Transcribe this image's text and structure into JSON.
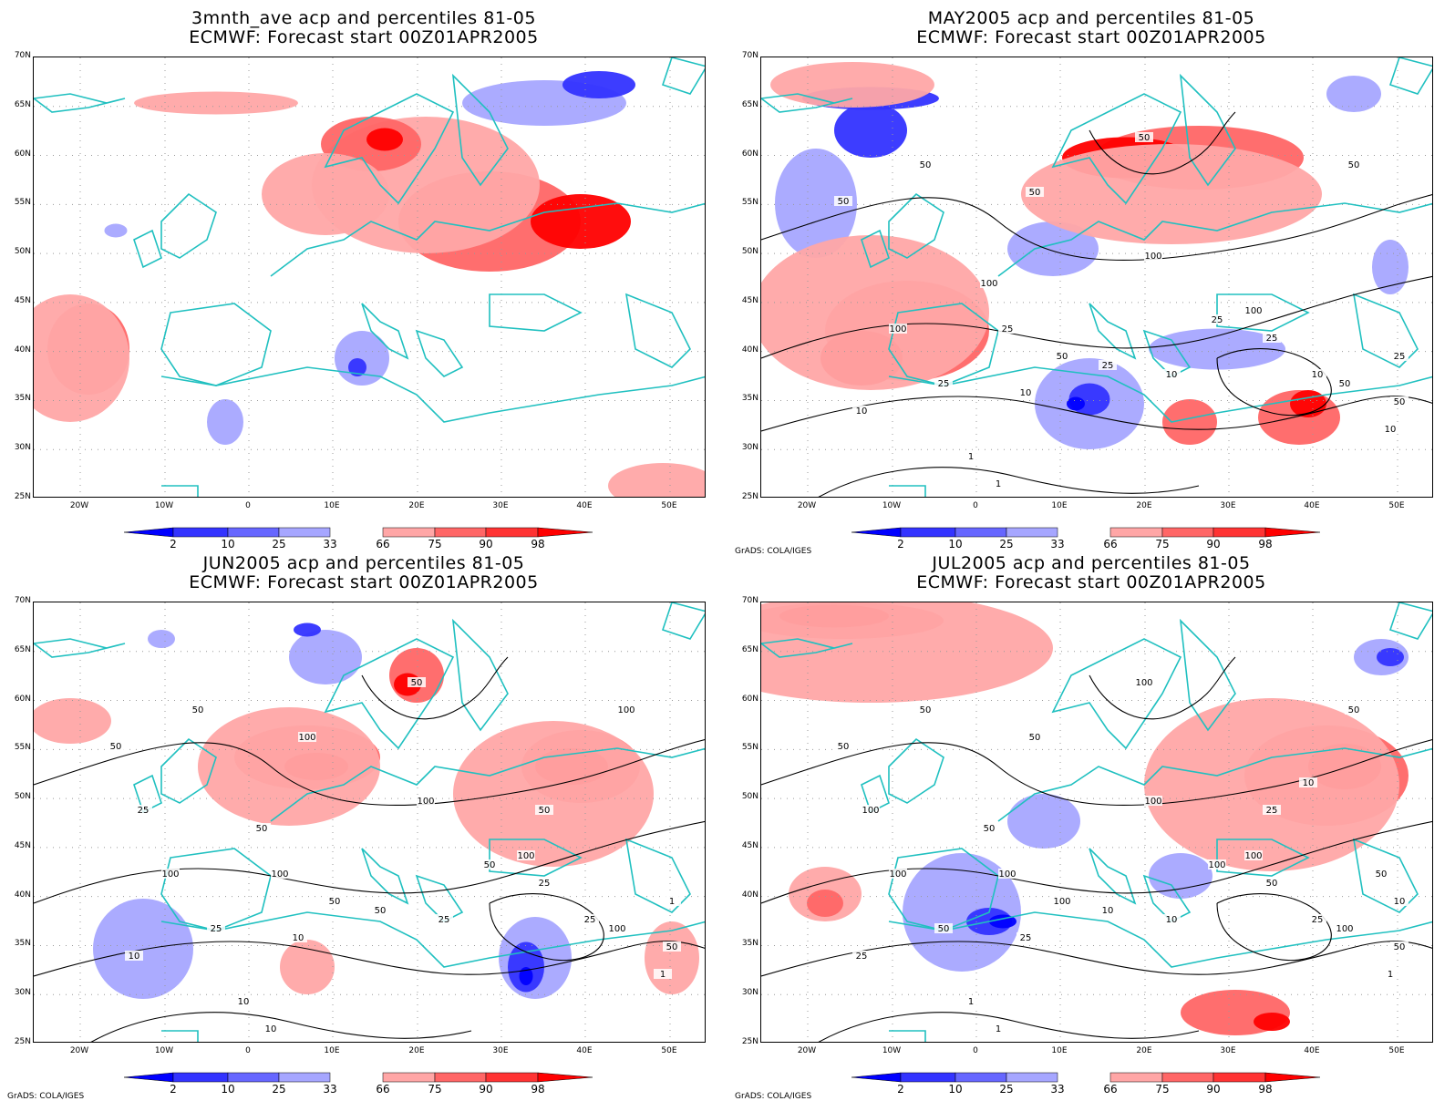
{
  "panels": [
    {
      "title_line1": "3mnth_ave acp and percentiles 81-05",
      "title_line2": "ECMWF: Forecast start 00Z01APR2005",
      "credit": "",
      "contours_shown": false,
      "contour_labels": []
    },
    {
      "title_line1": "MAY2005 acp and percentiles 81-05",
      "title_line2": "ECMWF: Forecast start 00Z01APR2005",
      "credit": "GrADS: COLA/IGES",
      "contours_shown": true,
      "contour_labels": [
        "50",
        "50",
        "50",
        "50",
        "50",
        "100",
        "100",
        "100",
        "100",
        "25",
        "25",
        "25",
        "50",
        "10",
        "10",
        "25",
        "10",
        "25",
        "10",
        "50",
        "50",
        "1",
        "1",
        "10",
        "25"
      ]
    },
    {
      "title_line1": "JUN2005 acp and percentiles 81-05",
      "title_line2": "ECMWF: Forecast start 00Z01APR2005",
      "credit": "GrADS: COLA/IGES",
      "contours_shown": true,
      "contour_labels": [
        "50",
        "50",
        "50",
        "100",
        "100",
        "100",
        "50",
        "100",
        "100",
        "100",
        "50",
        "25",
        "50",
        "25",
        "10",
        "25",
        "10",
        "50",
        "25",
        "100",
        "50",
        "10",
        "10",
        "1",
        "1",
        "25",
        "50"
      ]
    },
    {
      "title_line1": "JUL2005 acp and percentiles 81-05",
      "title_line2": "ECMWF: Forecast start 00Z01APR2005",
      "credit": "GrADS: COLA/IGES",
      "contours_shown": true,
      "contour_labels": [
        "50",
        "100",
        "50",
        "50",
        "50",
        "100",
        "50",
        "100",
        "100",
        "100",
        "100",
        "50",
        "100",
        "25",
        "25",
        "50",
        "25",
        "10",
        "10",
        "100",
        "50",
        "1",
        "1",
        "1",
        "10",
        "100",
        "25",
        "10",
        "50"
      ]
    }
  ],
  "lat_labels": [
    "70N",
    "65N",
    "60N",
    "55N",
    "50N",
    "45N",
    "40N",
    "35N",
    "30N",
    "25N"
  ],
  "lon_labels": [
    "20W",
    "10W",
    "0",
    "10E",
    "20E",
    "30E",
    "40E",
    "50E"
  ],
  "colorbar": {
    "labels": [
      "2",
      "10",
      "25",
      "33",
      "66",
      "75",
      "90",
      "98"
    ],
    "below_colors": [
      "#0000ff",
      "#3333ff",
      "#6666ff",
      "#a6a6ff"
    ],
    "above_colors": [
      "#ffa6a6",
      "#ff6666",
      "#ff3333",
      "#ff0000"
    ]
  },
  "colors": {
    "coast": "#20c0c0",
    "contour": "#000000",
    "grid": "#999999"
  }
}
